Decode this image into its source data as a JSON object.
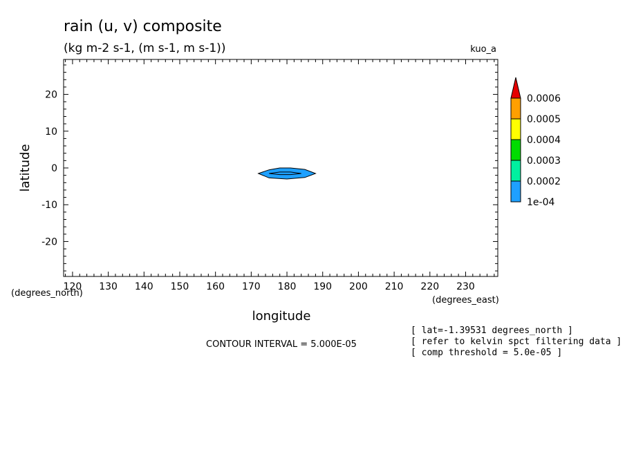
{
  "title": "rain (u, v) composite",
  "subtitle": "(kg m-2 s-1, (m s-1, m s-1))",
  "tag": "kuo_a",
  "contour_interval": "CONTOUR INTERVAL = 5.000E-05",
  "notes": [
    "[ lat=-1.39531 degrees_north ]",
    "[ refer to kelvin spct filtering data ]",
    "[ comp threshold = 5.0e-05 ]"
  ],
  "colorbar": {
    "labels": [
      "0.0006",
      "0.0005",
      "0.0004",
      "0.0003",
      "0.0002",
      "1e-04"
    ],
    "colors": [
      "#1ea0ff",
      "#00f0a0",
      "#00dc00",
      "#ffff00",
      "#ff9f00",
      "#e60000"
    ]
  },
  "chart_data": {
    "type": "contour",
    "xlabel": "longitude",
    "ylabel": "latitude",
    "xunits": "(degrees_east)",
    "yunits": "(degrees_north)",
    "xlim": [
      117.5,
      239
    ],
    "ylim": [
      -29.5,
      29.5
    ],
    "xticks": [
      120,
      130,
      140,
      150,
      160,
      170,
      180,
      190,
      200,
      210,
      220,
      230
    ],
    "yticks": [
      20,
      10,
      0,
      -10,
      -20
    ],
    "contours": [
      {
        "level": 0.0001,
        "color": "#1ea0ff",
        "points": [
          [
            172,
            -1.5
          ],
          [
            175,
            -0.5
          ],
          [
            178,
            0
          ],
          [
            181,
            0
          ],
          [
            185,
            -0.4
          ],
          [
            188,
            -1.5
          ],
          [
            185,
            -2.6
          ],
          [
            180,
            -3
          ],
          [
            175,
            -2.7
          ]
        ]
      },
      {
        "level": 0.00015,
        "color": "#1ea0ff",
        "points": [
          [
            175,
            -1.5
          ],
          [
            178,
            -1.1
          ],
          [
            181,
            -1.1
          ],
          [
            184,
            -1.5
          ],
          [
            181,
            -1.8
          ],
          [
            178,
            -1.8
          ]
        ]
      }
    ]
  }
}
